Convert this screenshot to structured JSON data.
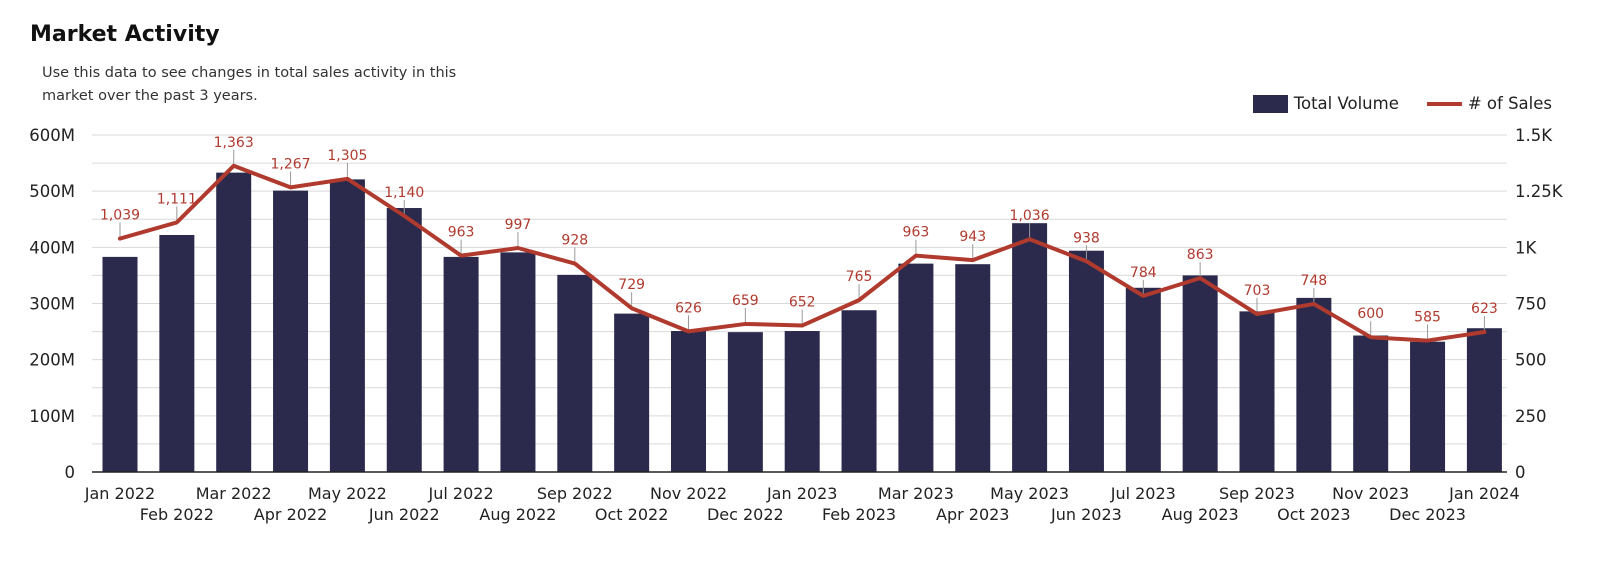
{
  "header": {
    "title": "Market Activity",
    "subtitle": "Use this data to see changes in total sales activity in this market over the past 3 years."
  },
  "legend": {
    "volume_label": "Total Volume",
    "sales_label": "# of Sales"
  },
  "colors": {
    "bar": "#2b2a4c",
    "line": "#b03a2e",
    "grid": "#d9d9d9",
    "axis": "#222222"
  },
  "chart_data": {
    "type": "bar",
    "title": "Market Activity",
    "categories": [
      "Jan 2022",
      "Feb 2022",
      "Mar 2022",
      "Apr 2022",
      "May 2022",
      "Jun 2022",
      "Jul 2022",
      "Aug 2022",
      "Sep 2022",
      "Oct 2022",
      "Nov 2022",
      "Dec 2022",
      "Jan 2023",
      "Feb 2023",
      "Mar 2023",
      "Apr 2023",
      "May 2023",
      "Jun 2023",
      "Jul 2023",
      "Aug 2023",
      "Sep 2023",
      "Oct 2023",
      "Nov 2023",
      "Dec 2023",
      "Jan 2024"
    ],
    "series": [
      {
        "name": "Total Volume",
        "type": "bar",
        "axis": "left",
        "values": [
          383,
          422,
          533,
          501,
          521,
          470,
          383,
          391,
          351,
          282,
          251,
          249,
          251,
          288,
          371,
          370,
          443,
          394,
          328,
          350,
          286,
          310,
          243,
          232,
          256
        ]
      },
      {
        "name": "# of Sales",
        "type": "line",
        "axis": "right",
        "values": [
          1039,
          1111,
          1363,
          1267,
          1305,
          1140,
          963,
          997,
          928,
          729,
          626,
          659,
          652,
          765,
          963,
          943,
          1036,
          938,
          784,
          863,
          703,
          748,
          600,
          585,
          623
        ],
        "labels": [
          "1,039",
          "1,111",
          "1,363",
          "1,267",
          "1,305",
          "1,140",
          "963",
          "997",
          "928",
          "729",
          "626",
          "659",
          "652",
          "765",
          "963",
          "943",
          "1,036",
          "938",
          "784",
          "863",
          "703",
          "748",
          "600",
          "585",
          "623"
        ]
      }
    ],
    "left_axis": {
      "ylim": [
        0,
        600
      ],
      "ticks": [
        0,
        100,
        200,
        300,
        400,
        500,
        600
      ],
      "tick_labels": [
        "0",
        "100M",
        "200M",
        "300M",
        "400M",
        "500M",
        "600M"
      ]
    },
    "right_axis": {
      "ylim": [
        0,
        1500
      ],
      "ticks": [
        0,
        250,
        500,
        750,
        1000,
        1250,
        1500
      ],
      "tick_labels": [
        "0",
        "250",
        "500",
        "750",
        "1K",
        "1.25K",
        "1.5K"
      ]
    },
    "grid": true,
    "legend_position": "top-right"
  }
}
